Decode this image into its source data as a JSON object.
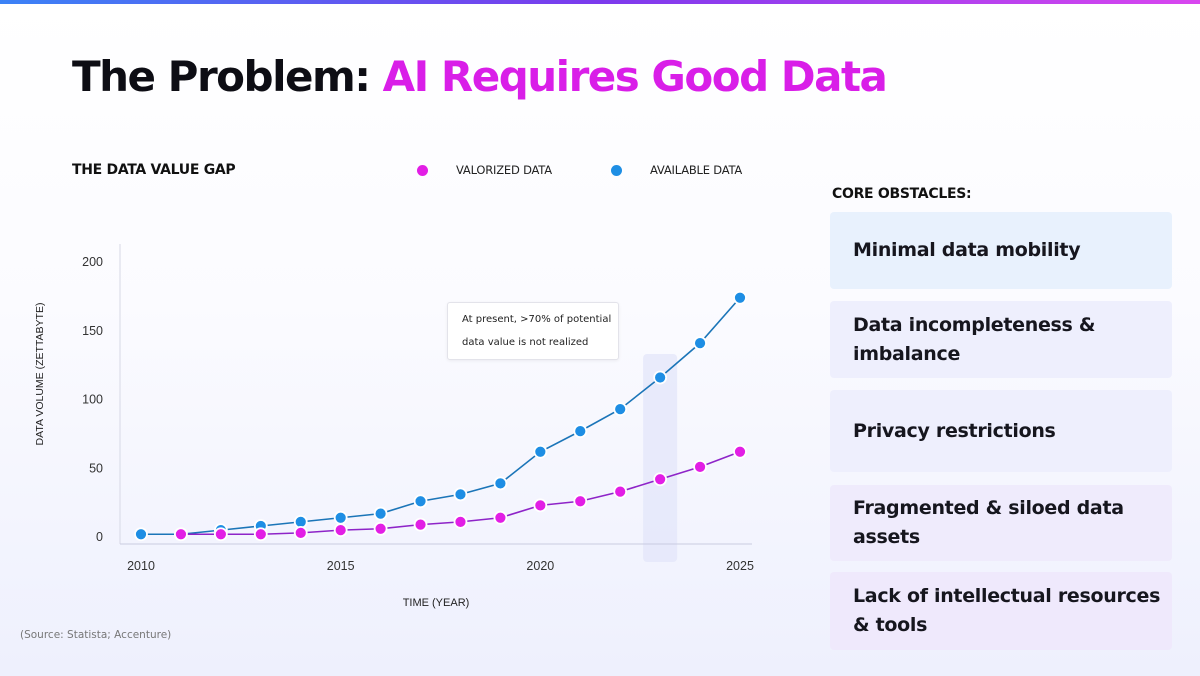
{
  "header": {
    "title_part1": "The Problem",
    "title_colon": ":",
    "title_part2": "AI Requires Good Data"
  },
  "chart_data": {
    "type": "line",
    "title": "THE DATA VALUE GAP",
    "xlabel": "TIME (YEAR)",
    "ylabel": "DATA VOLUME (ZETTABYTE)",
    "xlim": [
      2010,
      2025
    ],
    "ylim": [
      0,
      200
    ],
    "x_ticks": [
      2010,
      2015,
      2020,
      2025
    ],
    "y_ticks": [
      0,
      50,
      100,
      150,
      200
    ],
    "x": [
      2010,
      2011,
      2012,
      2013,
      2014,
      2015,
      2016,
      2017,
      2018,
      2019,
      2020,
      2021,
      2022,
      2023,
      2024,
      2025
    ],
    "series": [
      {
        "name": "VALORIZED DATA",
        "color": "#e21ee5",
        "values": [
          null,
          2,
          2,
          2,
          3,
          5,
          6,
          9,
          11,
          14,
          23,
          26,
          33,
          42,
          51,
          62
        ]
      },
      {
        "name": "AVAILABLE DATA",
        "color": "#1e8ee4",
        "values": [
          2,
          2,
          5,
          8,
          11,
          14,
          17,
          26,
          31,
          39,
          62,
          77,
          93,
          116,
          141,
          174
        ]
      }
    ],
    "legend_position": "top",
    "highlight_year": 2023,
    "annotation": {
      "line1": "At present, >70% of potential",
      "line2": "data value is not realized"
    },
    "source": "(Source: Statista; Accenture)"
  },
  "obstacles": {
    "heading": "CORE OBSTACLES:",
    "items": [
      {
        "line1": "Minimal data mobility",
        "line2": "",
        "bg": "#e8f1fd"
      },
      {
        "line1": "Data incompleteness &",
        "line2": "imbalance",
        "bg": "#eeeffd"
      },
      {
        "line1": "Privacy restrictions",
        "line2": "",
        "bg": "#eeeffd"
      },
      {
        "line1": "Fragmented & siloed data",
        "line2": "assets",
        "bg": "#efebfc"
      },
      {
        "line1": "Lack of intellectual resources",
        "line2": "& tools",
        "bg": "#efe9fc"
      }
    ]
  }
}
